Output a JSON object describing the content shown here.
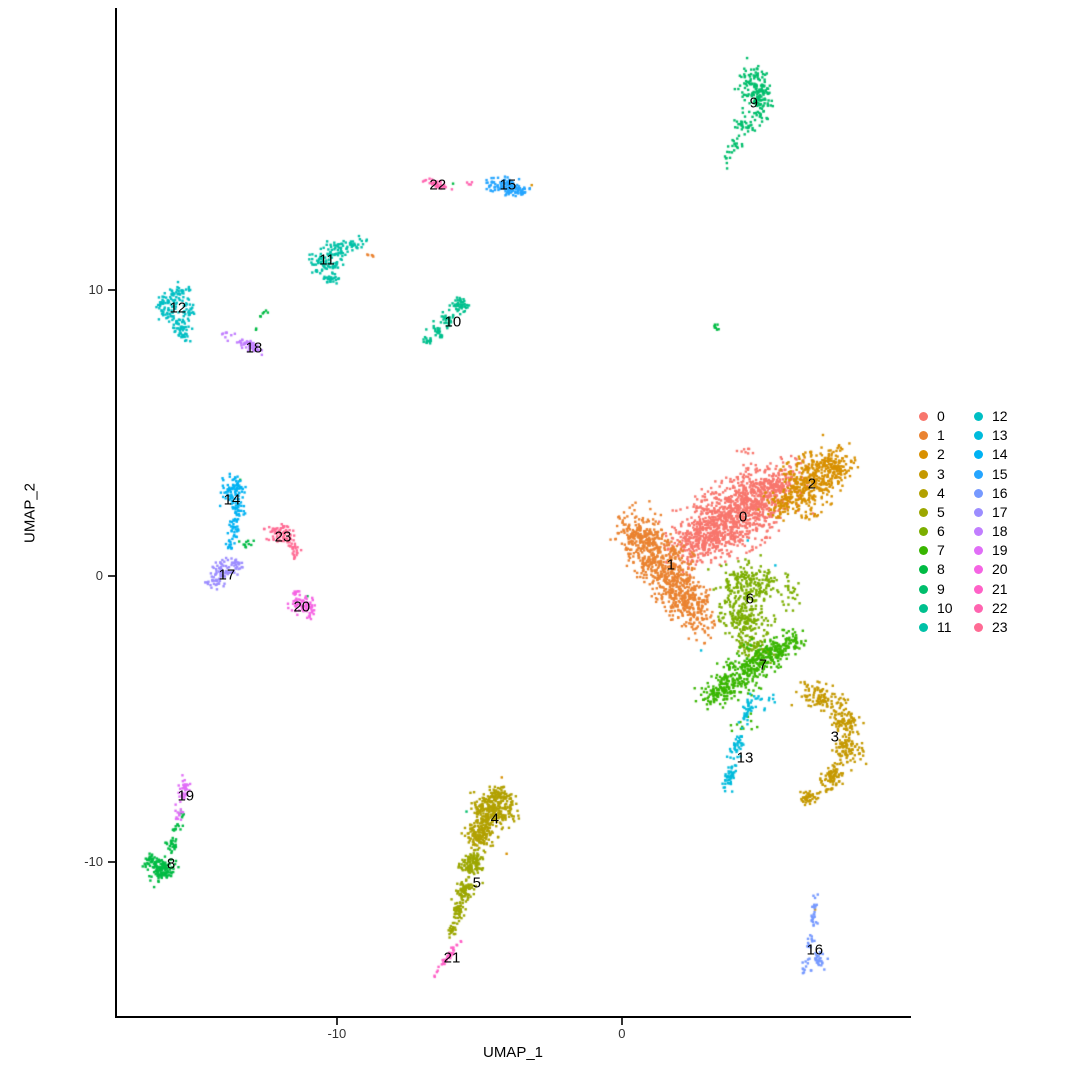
{
  "chart_data": {
    "type": "scatter",
    "title": "",
    "xlabel": "UMAP_1",
    "ylabel": "UMAP_2",
    "xlim": [
      -17.75,
      10.11
    ],
    "ylim": [
      -15.42,
      19.79
    ],
    "x_ticks": [
      -10,
      0
    ],
    "y_ticks": [
      10,
      0,
      -10
    ],
    "grid": false,
    "legend_position": "right",
    "legend_columns": 2,
    "background": "#FFFFFF",
    "axis_color": "#000000",
    "tick_label_color": "#333333",
    "clusters": [
      {
        "name": "0",
        "color": "#F8766D",
        "label_xy": [
          4.25,
          2.06
        ],
        "blobs": [
          [
            3.96,
            2.13,
            2.11,
            1.19,
            30,
            850
          ],
          [
            2.74,
            1.26,
            1.23,
            0.77,
            30,
            250
          ],
          [
            5.19,
            3.08,
            1.33,
            0.77,
            25,
            250
          ],
          [
            4.14,
            4.41,
            0.53,
            0.28,
            0,
            8
          ]
        ]
      },
      {
        "name": "1",
        "color": "#EA8331",
        "label_xy": [
          1.72,
          0.38
        ],
        "blobs": [
          [
            1.33,
            0.56,
            1.82,
            0.91,
            -50,
            500
          ],
          [
            2.21,
            -0.84,
            1.4,
            0.7,
            -50,
            300
          ],
          [
            0.63,
            1.43,
            0.88,
            0.63,
            -40,
            120
          ],
          [
            -8.77,
            11.22,
            0.18,
            0.07,
            -15,
            5
          ]
        ]
      },
      {
        "name": "2",
        "color": "#D89000",
        "label_xy": [
          6.67,
          3.22
        ],
        "blobs": [
          [
            6.6,
            3.25,
            1.4,
            0.91,
            40,
            380
          ],
          [
            7.47,
            3.88,
            0.77,
            0.56,
            40,
            120
          ],
          [
            5.61,
            2.48,
            0.63,
            0.49,
            40,
            60
          ],
          [
            -3.16,
            13.67,
            0.05,
            0.05,
            0,
            1
          ],
          [
            -5.72,
            9.51,
            0.05,
            0.05,
            0,
            1
          ],
          [
            6.77,
            -11.64,
            0.05,
            0.05,
            0,
            1
          ],
          [
            -4.18,
            -7.06,
            0.05,
            0.05,
            0,
            1
          ],
          [
            -4.0,
            -9.69,
            0.05,
            0.05,
            0,
            1
          ]
        ]
      },
      {
        "name": "3",
        "color": "#C59900",
        "label_xy": [
          7.47,
          -5.63
        ],
        "blobs": [
          [
            6.88,
            -4.23,
            0.91,
            0.45,
            -15,
            100
          ],
          [
            7.82,
            -5.03,
            0.56,
            0.45,
            -60,
            90
          ],
          [
            7.93,
            -6.01,
            0.49,
            0.56,
            90,
            90
          ],
          [
            7.37,
            -7.06,
            0.56,
            0.42,
            55,
            80
          ],
          [
            6.6,
            -7.73,
            0.42,
            0.28,
            30,
            50
          ]
        ]
      },
      {
        "name": "4",
        "color": "#B2A100",
        "label_xy": [
          -4.46,
          -8.5
        ],
        "blobs": [
          [
            -4.56,
            -8.18,
            0.77,
            0.63,
            10,
            280
          ],
          [
            -4.98,
            -9.06,
            0.56,
            0.49,
            -10,
            140
          ],
          [
            -4.28,
            -7.66,
            0.49,
            0.28,
            0,
            60
          ]
        ]
      },
      {
        "name": "5",
        "color": "#9CA700",
        "label_xy": [
          -5.09,
          -10.73
        ],
        "blobs": [
          [
            -5.26,
            -10.1,
            0.42,
            0.49,
            -10,
            120
          ],
          [
            -5.51,
            -10.98,
            0.32,
            0.42,
            -15,
            80
          ],
          [
            -5.75,
            -11.75,
            0.21,
            0.35,
            -15,
            45
          ],
          [
            -5.96,
            -12.38,
            0.14,
            0.24,
            -15,
            20
          ]
        ]
      },
      {
        "name": "6",
        "color": "#7CAE00",
        "label_xy": [
          4.49,
          -0.8
        ],
        "blobs": [
          [
            4.42,
            -0.31,
            1.05,
            0.77,
            15,
            220
          ],
          [
            4.32,
            -1.54,
            0.91,
            0.63,
            -10,
            160
          ],
          [
            4.67,
            -2.52,
            0.77,
            0.42,
            -20,
            90
          ],
          [
            5.89,
            -0.49,
            0.42,
            0.63,
            0,
            25
          ]
        ]
      },
      {
        "name": "7",
        "color": "#39B600",
        "label_xy": [
          4.95,
          -3.11
        ],
        "blobs": [
          [
            4.67,
            -3.11,
            1.58,
            0.7,
            35,
            300
          ],
          [
            3.44,
            -3.99,
            0.88,
            0.49,
            35,
            120
          ],
          [
            5.72,
            -2.41,
            0.7,
            0.42,
            35,
            80
          ],
          [
            4.49,
            -5.21,
            0.7,
            0.42,
            20,
            12
          ]
        ]
      },
      {
        "name": "8",
        "color": "#00BB44",
        "label_xy": [
          -15.82,
          -10.07
        ],
        "blobs": [
          [
            -16.11,
            -10.28,
            0.49,
            0.42,
            30,
            120
          ],
          [
            -16.49,
            -10.0,
            0.28,
            0.35,
            -20,
            40
          ],
          [
            -15.79,
            -9.41,
            0.21,
            0.28,
            -30,
            25
          ],
          [
            -15.58,
            -8.81,
            0.14,
            0.21,
            -20,
            12
          ],
          [
            -15.47,
            -8.36,
            0.11,
            0.21,
            0,
            6
          ],
          [
            -12.56,
            9.2,
            0.21,
            0.14,
            20,
            6
          ],
          [
            -12.84,
            8.6,
            0.07,
            0.07,
            0,
            2
          ],
          [
            -13.23,
            1.12,
            0.28,
            0.17,
            0,
            10
          ],
          [
            3.3,
            8.67,
            0.18,
            0.14,
            0,
            7
          ],
          [
            -11.02,
            -0.7,
            0.05,
            0.05,
            0,
            1
          ],
          [
            -13.4,
            3.32,
            0.05,
            0.05,
            0,
            1
          ],
          [
            -5.93,
            13.74,
            0.05,
            0.05,
            0,
            1
          ]
        ]
      },
      {
        "name": "9",
        "color": "#00BE6C",
        "label_xy": [
          4.63,
          16.54
        ],
        "blobs": [
          [
            4.6,
            17.17,
            0.56,
            0.77,
            -15,
            90
          ],
          [
            5.02,
            16.82,
            0.28,
            0.49,
            0,
            30
          ],
          [
            4.84,
            16.47,
            0.42,
            0.63,
            0,
            60
          ],
          [
            4.32,
            15.77,
            0.35,
            0.42,
            -30,
            30
          ],
          [
            3.96,
            15.07,
            0.21,
            0.35,
            -40,
            15
          ],
          [
            3.72,
            14.55,
            0.14,
            0.28,
            0,
            8
          ],
          [
            -5.44,
            -8.25,
            0.05,
            0.05,
            0,
            1
          ]
        ]
      },
      {
        "name": "10",
        "color": "#00C08E",
        "label_xy": [
          -5.93,
          8.88
        ],
        "blobs": [
          [
            -5.68,
            9.48,
            0.35,
            0.35,
            0,
            45
          ],
          [
            -6.11,
            8.95,
            0.28,
            0.21,
            -50,
            25
          ],
          [
            -6.46,
            8.53,
            0.35,
            0.17,
            -40,
            25
          ],
          [
            -6.81,
            8.18,
            0.28,
            0.14,
            -30,
            15
          ]
        ]
      },
      {
        "name": "11",
        "color": "#00C1A7",
        "label_xy": [
          -10.35,
          11.05
        ],
        "blobs": [
          [
            -10.42,
            10.98,
            0.56,
            0.63,
            0,
            90
          ],
          [
            -9.89,
            11.4,
            0.42,
            0.28,
            30,
            40
          ],
          [
            -9.37,
            11.57,
            0.28,
            0.17,
            20,
            15
          ],
          [
            -10.25,
            10.35,
            0.35,
            0.21,
            -10,
            20
          ],
          [
            -9.19,
            11.75,
            0.21,
            0.14,
            0,
            6
          ]
        ]
      },
      {
        "name": "12",
        "color": "#00BFC4",
        "label_xy": [
          -15.58,
          9.37
        ],
        "blobs": [
          [
            -15.68,
            9.83,
            0.49,
            0.35,
            20,
            50
          ],
          [
            -15.93,
            9.3,
            0.35,
            0.49,
            0,
            50
          ],
          [
            -15.51,
            8.78,
            0.42,
            0.31,
            -20,
            40
          ],
          [
            -15.23,
            9.3,
            0.28,
            0.35,
            0,
            25
          ],
          [
            -15.33,
            8.43,
            0.25,
            0.17,
            -20,
            15
          ]
        ]
      },
      {
        "name": "13",
        "color": "#00BBDC",
        "label_xy": [
          4.32,
          -6.36
        ],
        "blobs": [
          [
            4.42,
            -4.69,
            0.49,
            0.21,
            75,
            35
          ],
          [
            4.04,
            -5.91,
            0.56,
            0.21,
            75,
            35
          ],
          [
            3.75,
            -7.06,
            0.42,
            0.21,
            75,
            45
          ],
          [
            4.84,
            -4.34,
            0.77,
            0.31,
            0,
            14
          ],
          [
            2.74,
            -2.59,
            0.05,
            0.05,
            0,
            1
          ],
          [
            5.37,
            0.38,
            0.05,
            0.05,
            0,
            1
          ],
          [
            4.39,
            1.22,
            0.05,
            0.05,
            0,
            1
          ]
        ]
      },
      {
        "name": "14",
        "color": "#00B2F3",
        "label_xy": [
          -13.68,
          2.66
        ],
        "blobs": [
          [
            -13.65,
            3.01,
            0.39,
            0.49,
            0,
            80
          ],
          [
            -13.51,
            2.31,
            0.28,
            0.42,
            -10,
            40
          ],
          [
            -13.61,
            1.61,
            0.21,
            0.35,
            0,
            25
          ],
          [
            -13.75,
            1.08,
            0.18,
            0.17,
            0,
            12
          ]
        ]
      },
      {
        "name": "15",
        "color": "#25A5FF",
        "label_xy": [
          -4.0,
          13.67
        ],
        "blobs": [
          [
            -4.11,
            13.64,
            0.77,
            0.28,
            -10,
            100
          ],
          [
            -3.65,
            13.43,
            0.42,
            0.21,
            0,
            30
          ]
        ]
      },
      {
        "name": "16",
        "color": "#7699FF",
        "label_xy": [
          6.77,
          -13.08
        ],
        "blobs": [
          [
            6.74,
            -11.85,
            0.63,
            0.14,
            85,
            25
          ],
          [
            6.67,
            -12.73,
            0.35,
            0.14,
            80,
            12
          ],
          [
            6.84,
            -13.36,
            0.42,
            0.35,
            0,
            30
          ],
          [
            6.46,
            -13.71,
            0.21,
            0.17,
            0,
            10
          ]
        ]
      },
      {
        "name": "17",
        "color": "#9C8DFF",
        "label_xy": [
          -13.86,
          0.03
        ],
        "blobs": [
          [
            -13.96,
            0.21,
            0.49,
            0.35,
            10,
            60
          ],
          [
            -13.47,
            0.38,
            0.28,
            0.21,
            30,
            20
          ],
          [
            -14.28,
            -0.21,
            0.35,
            0.21,
            -10,
            25
          ]
        ]
      },
      {
        "name": "18",
        "color": "#C17EFF",
        "label_xy": [
          -12.91,
          7.97
        ],
        "blobs": [
          [
            -13.12,
            8.08,
            0.77,
            0.17,
            -27,
            55
          ],
          [
            -13.93,
            8.46,
            0.14,
            0.1,
            0,
            5
          ]
        ]
      },
      {
        "name": "19",
        "color": "#E06EF7",
        "label_xy": [
          -15.3,
          -7.69
        ],
        "blobs": [
          [
            -15.37,
            -7.48,
            0.56,
            0.21,
            80,
            40
          ],
          [
            -15.54,
            -8.29,
            0.28,
            0.14,
            80,
            12
          ]
        ]
      },
      {
        "name": "20",
        "color": "#F564E3",
        "label_xy": [
          -11.23,
          -1.08
        ],
        "blobs": [
          [
            -11.19,
            -1.01,
            0.46,
            0.35,
            0,
            60
          ],
          [
            -11.47,
            -0.59,
            0.18,
            0.21,
            0,
            10
          ],
          [
            -10.95,
            -1.36,
            0.21,
            0.17,
            0,
            8
          ]
        ]
      },
      {
        "name": "21",
        "color": "#FF61C7",
        "label_xy": [
          -5.96,
          -13.36
        ],
        "blobs": [
          [
            -6.07,
            -13.29,
            0.77,
            0.1,
            53,
            40
          ]
        ]
      },
      {
        "name": "22",
        "color": "#FF64B0",
        "label_xy": [
          -6.46,
          13.67
        ],
        "blobs": [
          [
            -6.49,
            13.71,
            0.49,
            0.14,
            -20,
            35
          ],
          [
            -5.4,
            13.74,
            0.21,
            0.07,
            0,
            4
          ]
        ]
      },
      {
        "name": "23",
        "color": "#FF6B94",
        "label_xy": [
          -11.89,
          1.36
        ],
        "blobs": [
          [
            -11.96,
            1.5,
            0.56,
            0.35,
            -15,
            70
          ],
          [
            -11.58,
            0.98,
            0.28,
            0.21,
            -30,
            20
          ],
          [
            -11.47,
            0.66,
            0.1,
            0.14,
            0,
            4
          ]
        ]
      }
    ]
  }
}
